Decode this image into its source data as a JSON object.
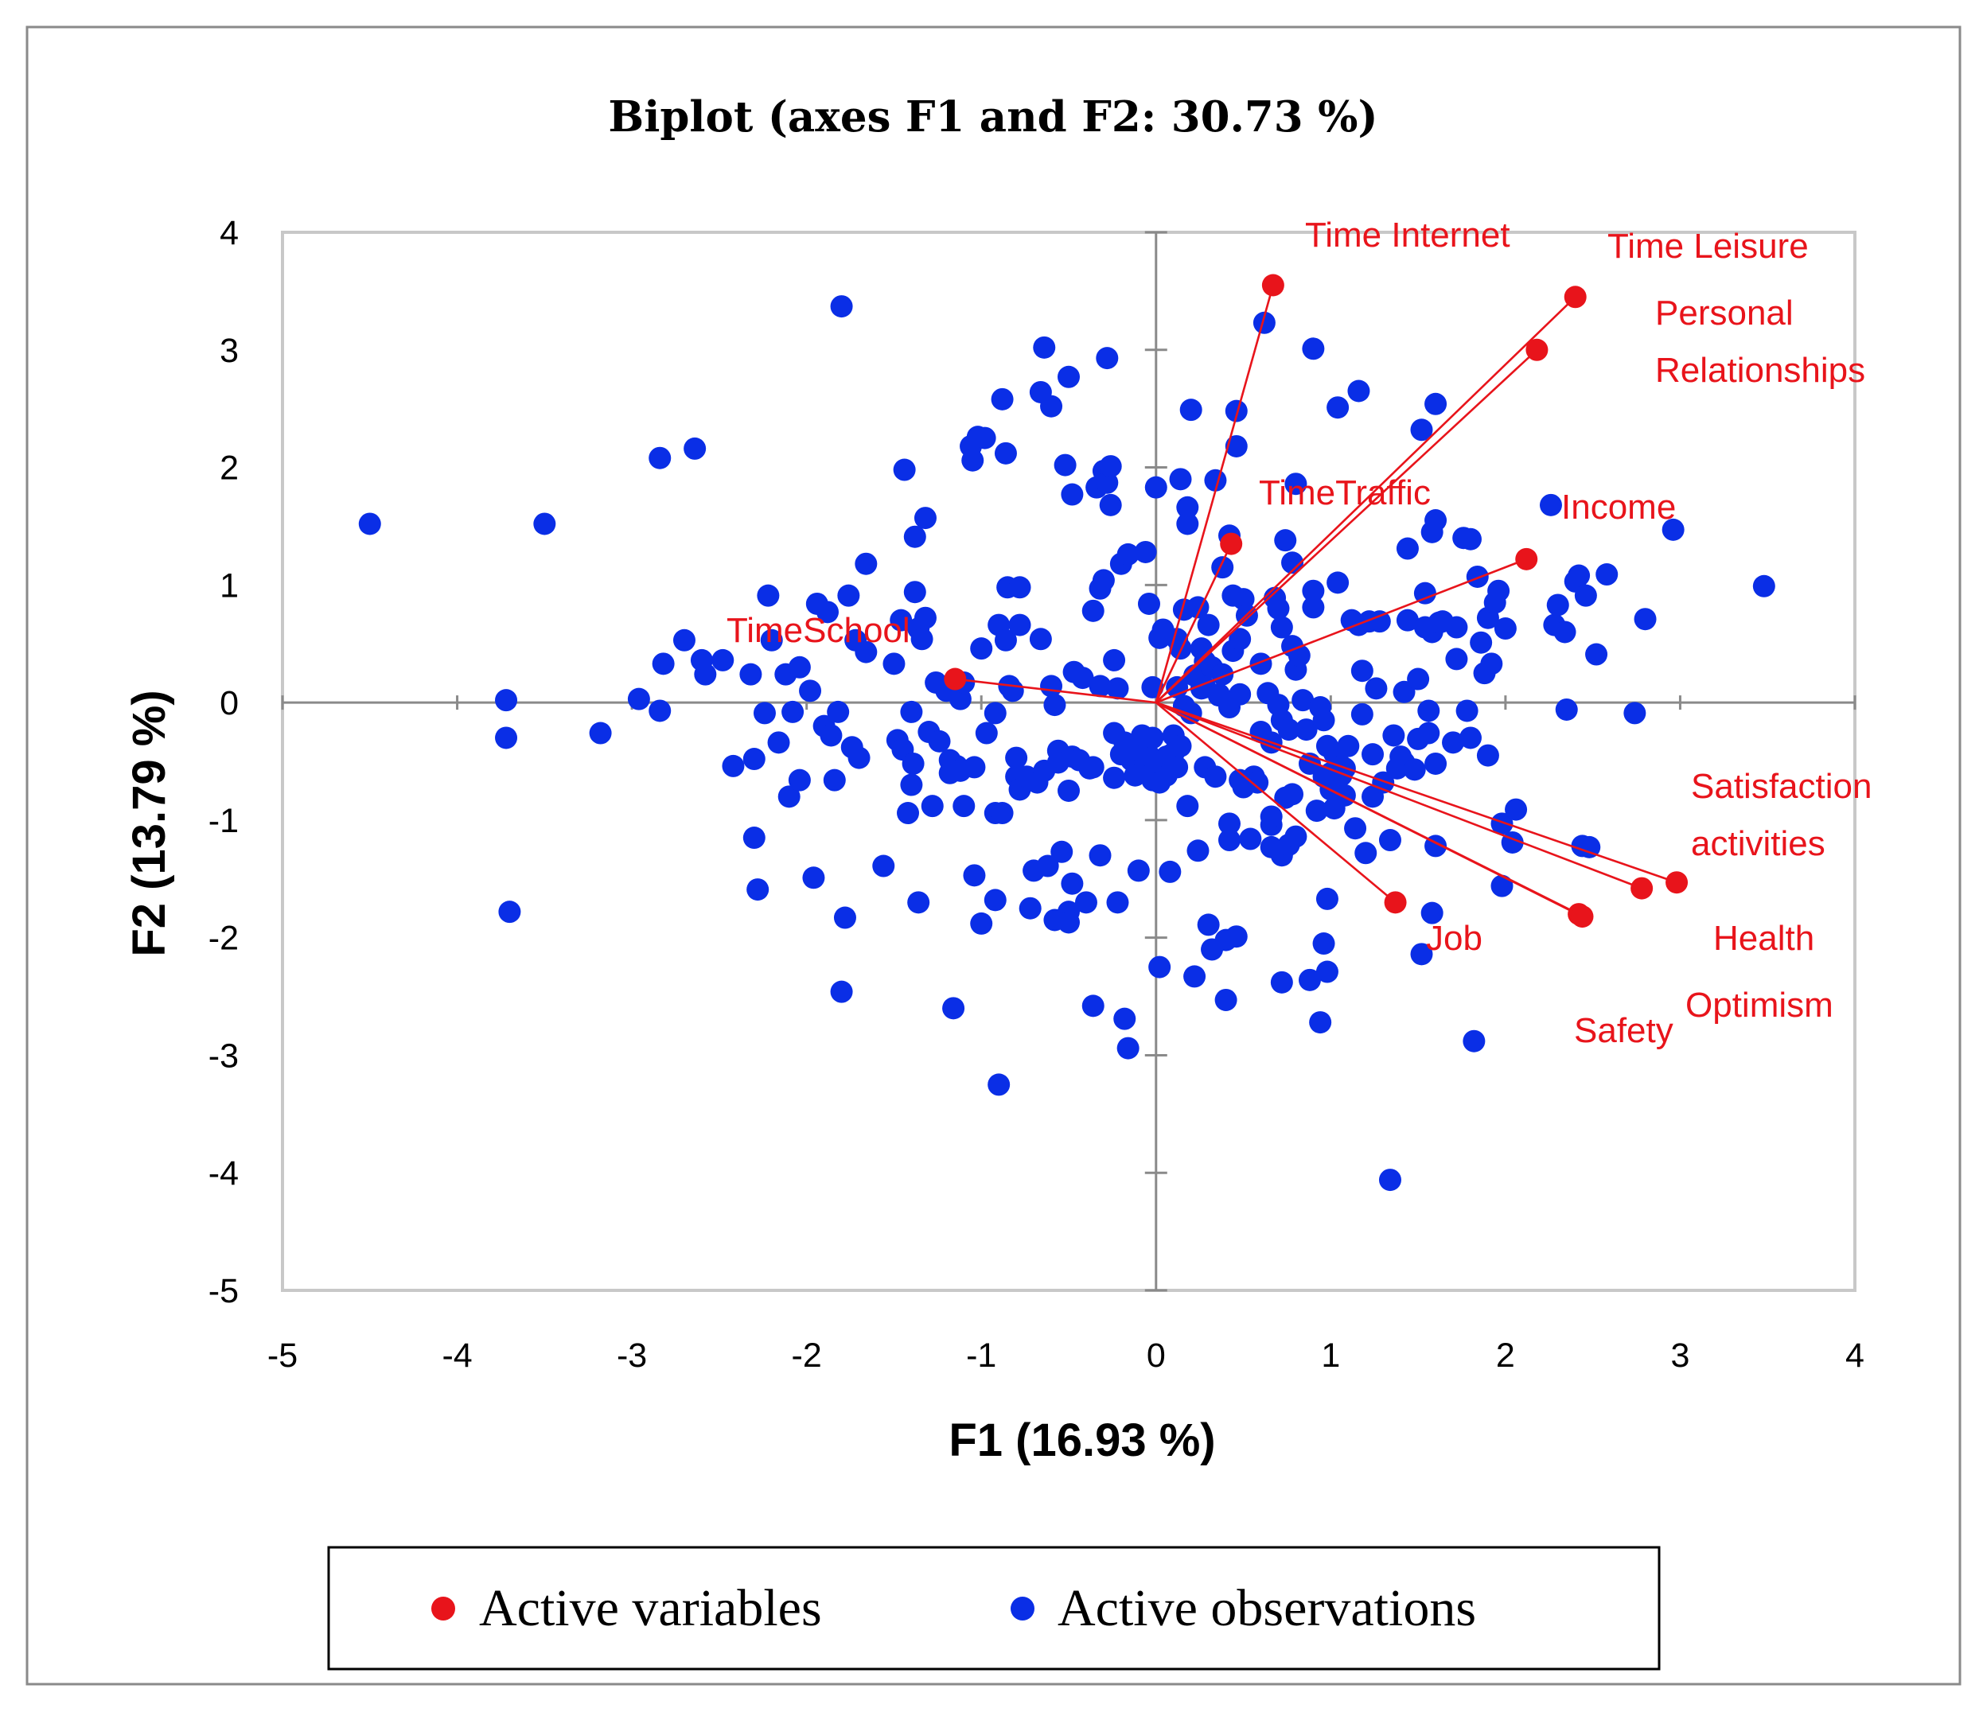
{
  "chart_data": {
    "type": "scatter",
    "title": "Biplot (axes F1 and F2: 30.73 %)",
    "xlabel": "F1 (16.93 %)",
    "ylabel": "F2 (13.79 %)",
    "xlim": [
      -5,
      4
    ],
    "ylim": [
      -5,
      4
    ],
    "xticks": [
      "-5",
      "-4",
      "-3",
      "-2",
      "-1",
      "0",
      "1",
      "2",
      "3",
      "4"
    ],
    "yticks": [
      "4",
      "3",
      "2",
      "1",
      "0",
      "-1",
      "-2",
      "-3",
      "-4",
      "-5"
    ],
    "legend": {
      "position": "bottom",
      "items": [
        {
          "label": "Active variables",
          "color": "#e8141b"
        },
        {
          "label": "Active observations",
          "color": "#0a2ee6"
        }
      ]
    },
    "variables": [
      {
        "name": "Time Internet",
        "x": 0.67,
        "y": 3.55,
        "label_lines": [
          "Time Internet"
        ]
      },
      {
        "name": "Time Leisure",
        "x": 2.4,
        "y": 3.45,
        "label_lines": [
          "Time Leisure"
        ]
      },
      {
        "name": "Personal Relationships",
        "x": 2.18,
        "y": 3.0,
        "label_lines": [
          "Personal",
          "Relationships"
        ]
      },
      {
        "name": "TimeTraffic",
        "x": 0.43,
        "y": 1.35,
        "label_lines": [
          "TimeTraffic"
        ]
      },
      {
        "name": "Income",
        "x": 2.12,
        "y": 1.22,
        "label_lines": [
          "Income"
        ]
      },
      {
        "name": "TimeSchool",
        "x": -1.15,
        "y": 0.2,
        "label_lines": [
          "TimeSchool"
        ]
      },
      {
        "name": "Satisfaction activities",
        "x": 2.98,
        "y": -1.53,
        "label_lines": [
          "Satisfaction",
          "activities"
        ]
      },
      {
        "name": "Health",
        "x": 2.78,
        "y": -1.58,
        "label_lines": [
          "Health"
        ]
      },
      {
        "name": "Optimism",
        "x": 2.42,
        "y": -1.8,
        "label_lines": [
          "Optimism"
        ]
      },
      {
        "name": "Job",
        "x": 1.37,
        "y": -1.7,
        "label_lines": [
          "Job"
        ]
      },
      {
        "name": "Safety",
        "x": 2.44,
        "y": -1.82,
        "label_lines": [
          "Safety"
        ]
      }
    ],
    "observations": [
      [
        -4.5,
        1.52
      ],
      [
        -3.5,
        1.52
      ],
      [
        -3.72,
        0.02
      ],
      [
        -3.72,
        -0.3
      ],
      [
        -3.7,
        -1.78
      ],
      [
        -3.18,
        -0.26
      ],
      [
        -2.96,
        0.03
      ],
      [
        -2.84,
        -0.07
      ],
      [
        -2.82,
        0.33
      ],
      [
        -2.84,
        2.08
      ],
      [
        -2.64,
        2.16
      ],
      [
        -2.7,
        0.53
      ],
      [
        -2.6,
        0.36
      ],
      [
        -2.58,
        0.24
      ],
      [
        -2.48,
        0.36
      ],
      [
        -2.42,
        -0.54
      ],
      [
        -2.32,
        0.24
      ],
      [
        -2.3,
        -0.48
      ],
      [
        -2.3,
        -1.15
      ],
      [
        -2.28,
        -1.59
      ],
      [
        -2.24,
        -0.09
      ],
      [
        -2.22,
        0.91
      ],
      [
        -2.2,
        0.53
      ],
      [
        -2.16,
        -0.34
      ],
      [
        -2.12,
        0.24
      ],
      [
        -2.1,
        -0.8
      ],
      [
        -2.08,
        -0.08
      ],
      [
        -2.04,
        -0.66
      ],
      [
        -2.04,
        0.3
      ],
      [
        -1.98,
        0.1
      ],
      [
        -1.96,
        -1.49
      ],
      [
        -1.94,
        0.84
      ],
      [
        -1.9,
        -0.2
      ],
      [
        -1.88,
        0.77
      ],
      [
        -1.86,
        -0.28
      ],
      [
        -1.84,
        -0.66
      ],
      [
        -1.82,
        -0.08
      ],
      [
        -1.8,
        -2.46
      ],
      [
        -1.8,
        3.37
      ],
      [
        -1.78,
        -1.83
      ],
      [
        -1.76,
        0.91
      ],
      [
        -1.74,
        -0.38
      ],
      [
        -1.72,
        0.53
      ],
      [
        -1.7,
        -0.47
      ],
      [
        -1.66,
        0.43
      ],
      [
        -1.66,
        1.18
      ],
      [
        -1.56,
        -1.39
      ],
      [
        -1.5,
        0.33
      ],
      [
        -1.48,
        -0.32
      ],
      [
        -1.46,
        0.7
      ],
      [
        -1.45,
        -0.4
      ],
      [
        -1.44,
        1.98
      ],
      [
        -1.42,
        -0.94
      ],
      [
        -1.4,
        -0.7
      ],
      [
        -1.4,
        -0.08
      ],
      [
        -1.39,
        -0.52
      ],
      [
        -1.38,
        0.94
      ],
      [
        -1.38,
        1.41
      ],
      [
        -1.36,
        0.63
      ],
      [
        -1.36,
        -1.7
      ],
      [
        -1.34,
        0.54
      ],
      [
        -1.32,
        0.72
      ],
      [
        -1.32,
        1.57
      ],
      [
        -1.3,
        -0.25
      ],
      [
        -1.28,
        -0.88
      ],
      [
        -1.26,
        0.17
      ],
      [
        -1.24,
        -0.33
      ],
      [
        -1.2,
        0.1
      ],
      [
        -1.18,
        -0.49
      ],
      [
        -1.18,
        -0.6
      ],
      [
        -1.16,
        -2.6
      ],
      [
        -1.14,
        -0.54
      ],
      [
        -1.12,
        -0.58
      ],
      [
        -1.12,
        0.03
      ],
      [
        -1.1,
        -0.88
      ],
      [
        -1.1,
        0.17
      ],
      [
        -1.06,
        2.18
      ],
      [
        -1.05,
        2.06
      ],
      [
        -1.04,
        -0.55
      ],
      [
        -1.04,
        -1.47
      ],
      [
        -1.02,
        2.26
      ],
      [
        -1.0,
        -1.88
      ],
      [
        -1.0,
        0.46
      ],
      [
        -0.98,
        2.25
      ],
      [
        -0.97,
        -0.26
      ],
      [
        -0.92,
        -0.09
      ],
      [
        -0.92,
        -0.94
      ],
      [
        -0.92,
        -1.68
      ],
      [
        -0.9,
        -3.25
      ],
      [
        -0.9,
        0.66
      ],
      [
        -0.88,
        2.58
      ],
      [
        -0.88,
        -0.94
      ],
      [
        -0.86,
        0.53
      ],
      [
        -0.86,
        2.12
      ],
      [
        -0.85,
        0.98
      ],
      [
        -0.84,
        0.14
      ],
      [
        -0.82,
        0.1
      ],
      [
        -0.8,
        -0.47
      ],
      [
        -0.8,
        -0.63
      ],
      [
        -0.78,
        0.66
      ],
      [
        -0.78,
        0.98
      ],
      [
        -0.78,
        -0.74
      ],
      [
        -0.74,
        -0.63
      ],
      [
        -0.72,
        -1.75
      ],
      [
        -0.7,
        -1.43
      ],
      [
        -0.68,
        -0.68
      ],
      [
        -0.66,
        0.54
      ],
      [
        -0.66,
        2.64
      ],
      [
        -0.64,
        3.02
      ],
      [
        -0.64,
        -0.58
      ],
      [
        -0.62,
        -1.39
      ],
      [
        -0.6,
        2.52
      ],
      [
        -0.6,
        0.14
      ],
      [
        -0.58,
        -0.02
      ],
      [
        -0.58,
        -1.85
      ],
      [
        -0.56,
        -0.41
      ],
      [
        -0.56,
        -0.51
      ],
      [
        -0.54,
        -1.27
      ],
      [
        -0.52,
        2.02
      ],
      [
        -0.5,
        -0.75
      ],
      [
        -0.5,
        2.77
      ],
      [
        -0.5,
        -1.78
      ],
      [
        -0.5,
        -1.87
      ],
      [
        -0.48,
        -1.54
      ],
      [
        -0.48,
        -0.46
      ],
      [
        -0.47,
        0.26
      ],
      [
        -0.48,
        1.77
      ],
      [
        -0.44,
        -0.49
      ],
      [
        -0.42,
        0.21
      ],
      [
        -0.4,
        -1.7
      ],
      [
        -0.38,
        -0.56
      ],
      [
        -0.36,
        -0.55
      ],
      [
        -0.36,
        0.78
      ],
      [
        -0.36,
        -2.58
      ],
      [
        -0.34,
        1.83
      ],
      [
        -0.32,
        0.97
      ],
      [
        -0.32,
        -1.3
      ],
      [
        -0.32,
        0.14
      ],
      [
        -0.3,
        1.04
      ],
      [
        -0.3,
        1.97
      ],
      [
        -0.28,
        1.87
      ],
      [
        -0.28,
        2.93
      ],
      [
        -0.26,
        1.68
      ],
      [
        -0.26,
        2.01
      ],
      [
        -0.24,
        -0.64
      ],
      [
        -0.24,
        0.36
      ],
      [
        -0.24,
        -0.26
      ],
      [
        -0.22,
        -1.7
      ],
      [
        -0.22,
        0.12
      ],
      [
        -0.2,
        1.18
      ],
      [
        -0.2,
        -0.44
      ],
      [
        -0.18,
        -0.34
      ],
      [
        -0.18,
        -2.69
      ],
      [
        -0.16,
        -2.94
      ],
      [
        -0.16,
        1.26
      ],
      [
        -0.14,
        -0.37
      ],
      [
        -0.14,
        -0.49
      ],
      [
        -0.12,
        -0.62
      ],
      [
        -0.12,
        -0.4
      ],
      [
        -0.1,
        -1.43
      ],
      [
        -0.1,
        -0.41
      ],
      [
        -0.08,
        -0.28
      ],
      [
        -0.06,
        1.28
      ],
      [
        -0.06,
        -0.54
      ],
      [
        -0.06,
        -0.51
      ],
      [
        -0.04,
        -0.45
      ],
      [
        -0.04,
        0.84
      ],
      [
        -0.02,
        -0.3
      ],
      [
        -0.02,
        -0.66
      ],
      [
        -0.02,
        0.13
      ],
      [
        0.0,
        1.83
      ],
      [
        0.0,
        -0.56
      ],
      [
        0.02,
        -0.68
      ],
      [
        0.02,
        -2.25
      ],
      [
        0.02,
        0.55
      ],
      [
        0.04,
        0.62
      ],
      [
        0.06,
        -0.62
      ],
      [
        0.06,
        -0.46
      ],
      [
        0.08,
        -0.45
      ],
      [
        0.08,
        -1.44
      ],
      [
        0.1,
        -0.28
      ],
      [
        0.1,
        -0.43
      ],
      [
        0.12,
        0.13
      ],
      [
        0.12,
        -0.55
      ],
      [
        0.12,
        0.54
      ],
      [
        0.14,
        0.46
      ],
      [
        0.14,
        1.9
      ],
      [
        0.14,
        -0.37
      ],
      [
        0.16,
        0.79
      ],
      [
        0.16,
        -0.03
      ],
      [
        0.18,
        1.52
      ],
      [
        0.18,
        1.66
      ],
      [
        0.18,
        -0.88
      ],
      [
        0.2,
        -0.09
      ],
      [
        0.2,
        2.49
      ],
      [
        0.22,
        0.23
      ],
      [
        0.22,
        -2.33
      ],
      [
        0.24,
        -1.26
      ],
      [
        0.24,
        0.81
      ],
      [
        0.26,
        0.46
      ],
      [
        0.26,
        0.12
      ],
      [
        0.28,
        0.35
      ],
      [
        0.28,
        -0.55
      ],
      [
        0.28,
        0.13
      ],
      [
        0.3,
        0.66
      ],
      [
        0.3,
        -1.89
      ],
      [
        0.32,
        0.3
      ],
      [
        0.32,
        -2.1
      ],
      [
        0.34,
        -0.63
      ],
      [
        0.34,
        1.89
      ],
      [
        0.36,
        0.06
      ],
      [
        0.36,
        0.07
      ],
      [
        0.38,
        1.15
      ],
      [
        0.38,
        0.24
      ],
      [
        0.4,
        -2.02
      ],
      [
        0.4,
        -2.53
      ],
      [
        0.42,
        -0.04
      ],
      [
        0.42,
        1.42
      ],
      [
        0.42,
        -1.17
      ],
      [
        0.42,
        -1.03
      ],
      [
        0.44,
        0.91
      ],
      [
        0.44,
        0.44
      ],
      [
        0.46,
        2.48
      ],
      [
        0.46,
        2.18
      ],
      [
        0.46,
        -1.99
      ],
      [
        0.48,
        0.07
      ],
      [
        0.48,
        0.54
      ],
      [
        0.48,
        -0.66
      ],
      [
        0.5,
        0.88
      ],
      [
        0.5,
        -0.72
      ],
      [
        0.52,
        0.74
      ],
      [
        0.54,
        -1.16
      ],
      [
        0.56,
        -0.63
      ],
      [
        0.58,
        -0.68
      ],
      [
        0.6,
        0.33
      ],
      [
        0.6,
        -0.25
      ],
      [
        0.62,
        3.23
      ],
      [
        0.64,
        0.08
      ],
      [
        0.66,
        -0.34
      ],
      [
        0.66,
        -1.04
      ],
      [
        0.66,
        -0.97
      ],
      [
        0.66,
        -1.23
      ],
      [
        0.68,
        0.89
      ],
      [
        0.7,
        -0.02
      ],
      [
        0.7,
        0.8
      ],
      [
        0.72,
        -1.3
      ],
      [
        0.72,
        0.64
      ],
      [
        0.72,
        -0.15
      ],
      [
        0.72,
        -2.38
      ],
      [
        0.74,
        1.38
      ],
      [
        0.74,
        -0.81
      ],
      [
        0.76,
        -1.21
      ],
      [
        0.76,
        -0.23
      ],
      [
        0.78,
        1.19
      ],
      [
        0.78,
        -0.78
      ],
      [
        0.78,
        0.48
      ],
      [
        0.8,
        1.86
      ],
      [
        0.8,
        0.28
      ],
      [
        0.8,
        -1.14
      ],
      [
        0.82,
        0.4
      ],
      [
        0.84,
        0.02
      ],
      [
        0.86,
        -0.23
      ],
      [
        0.88,
        -0.52
      ],
      [
        0.88,
        -2.36
      ],
      [
        0.9,
        0.95
      ],
      [
        0.9,
        0.81
      ],
      [
        0.9,
        3.01
      ],
      [
        0.92,
        -0.92
      ],
      [
        0.94,
        -0.04
      ],
      [
        0.94,
        -2.72
      ],
      [
        0.96,
        -0.15
      ],
      [
        0.96,
        -0.63
      ],
      [
        0.96,
        -2.05
      ],
      [
        0.98,
        -0.37
      ],
      [
        0.98,
        -1.67
      ],
      [
        0.98,
        -2.29
      ],
      [
        1.0,
        -0.6
      ],
      [
        1.0,
        -0.74
      ],
      [
        1.02,
        -0.43
      ],
      [
        1.02,
        -0.9
      ],
      [
        1.04,
        1.02
      ],
      [
        1.04,
        2.51
      ],
      [
        1.06,
        -0.54
      ],
      [
        1.06,
        -0.62
      ],
      [
        1.08,
        -0.56
      ],
      [
        1.08,
        -0.79
      ],
      [
        1.1,
        -0.37
      ],
      [
        1.12,
        0.7
      ],
      [
        1.14,
        -1.07
      ],
      [
        1.16,
        0.66
      ],
      [
        1.16,
        2.65
      ],
      [
        1.18,
        0.27
      ],
      [
        1.18,
        -0.1
      ],
      [
        1.2,
        -1.28
      ],
      [
        1.22,
        0.69
      ],
      [
        1.24,
        -0.8
      ],
      [
        1.24,
        -0.44
      ],
      [
        1.26,
        0.12
      ],
      [
        1.28,
        0.69
      ],
      [
        1.3,
        -0.68
      ],
      [
        1.34,
        -1.17
      ],
      [
        1.34,
        -4.06
      ],
      [
        1.36,
        -0.28
      ],
      [
        1.38,
        -0.56
      ],
      [
        1.4,
        -0.46
      ],
      [
        1.42,
        0.09
      ],
      [
        1.42,
        -0.51
      ],
      [
        1.44,
        1.31
      ],
      [
        1.44,
        0.7
      ],
      [
        1.48,
        -0.57
      ],
      [
        1.5,
        -0.31
      ],
      [
        1.5,
        0.2
      ],
      [
        1.52,
        2.32
      ],
      [
        1.52,
        -2.14
      ],
      [
        1.54,
        0.93
      ],
      [
        1.54,
        0.64
      ],
      [
        1.56,
        -0.26
      ],
      [
        1.56,
        -0.07
      ],
      [
        1.58,
        1.45
      ],
      [
        1.58,
        0.6
      ],
      [
        1.58,
        -1.79
      ],
      [
        1.6,
        1.55
      ],
      [
        1.6,
        -0.52
      ],
      [
        1.6,
        2.54
      ],
      [
        1.6,
        -1.22
      ],
      [
        1.62,
        0.68
      ],
      [
        1.64,
        0.69
      ],
      [
        1.7,
        -0.34
      ],
      [
        1.72,
        0.64
      ],
      [
        1.72,
        0.37
      ],
      [
        1.76,
        1.4
      ],
      [
        1.78,
        -0.07
      ],
      [
        1.8,
        1.39
      ],
      [
        1.8,
        -0.3
      ],
      [
        1.82,
        -2.88
      ],
      [
        1.84,
        1.07
      ],
      [
        1.86,
        0.51
      ],
      [
        1.88,
        0.25
      ],
      [
        1.9,
        0.72
      ],
      [
        1.9,
        -0.45
      ],
      [
        1.92,
        0.33
      ],
      [
        1.94,
        0.85
      ],
      [
        1.96,
        0.95
      ],
      [
        1.98,
        -1.03
      ],
      [
        1.98,
        -1.56
      ],
      [
        2.0,
        0.63
      ],
      [
        2.04,
        -1.19
      ],
      [
        2.06,
        -0.91
      ],
      [
        2.26,
        1.68
      ],
      [
        2.28,
        0.66
      ],
      [
        2.3,
        0.83
      ],
      [
        2.34,
        0.6
      ],
      [
        2.35,
        -0.06
      ],
      [
        2.4,
        1.03
      ],
      [
        2.42,
        1.08
      ],
      [
        2.44,
        -1.22
      ],
      [
        2.46,
        0.91
      ],
      [
        2.48,
        -1.23
      ],
      [
        2.52,
        0.41
      ],
      [
        2.58,
        1.09
      ],
      [
        2.74,
        -0.09
      ],
      [
        2.8,
        0.71
      ],
      [
        2.96,
        1.47
      ],
      [
        3.48,
        0.99
      ]
    ]
  }
}
